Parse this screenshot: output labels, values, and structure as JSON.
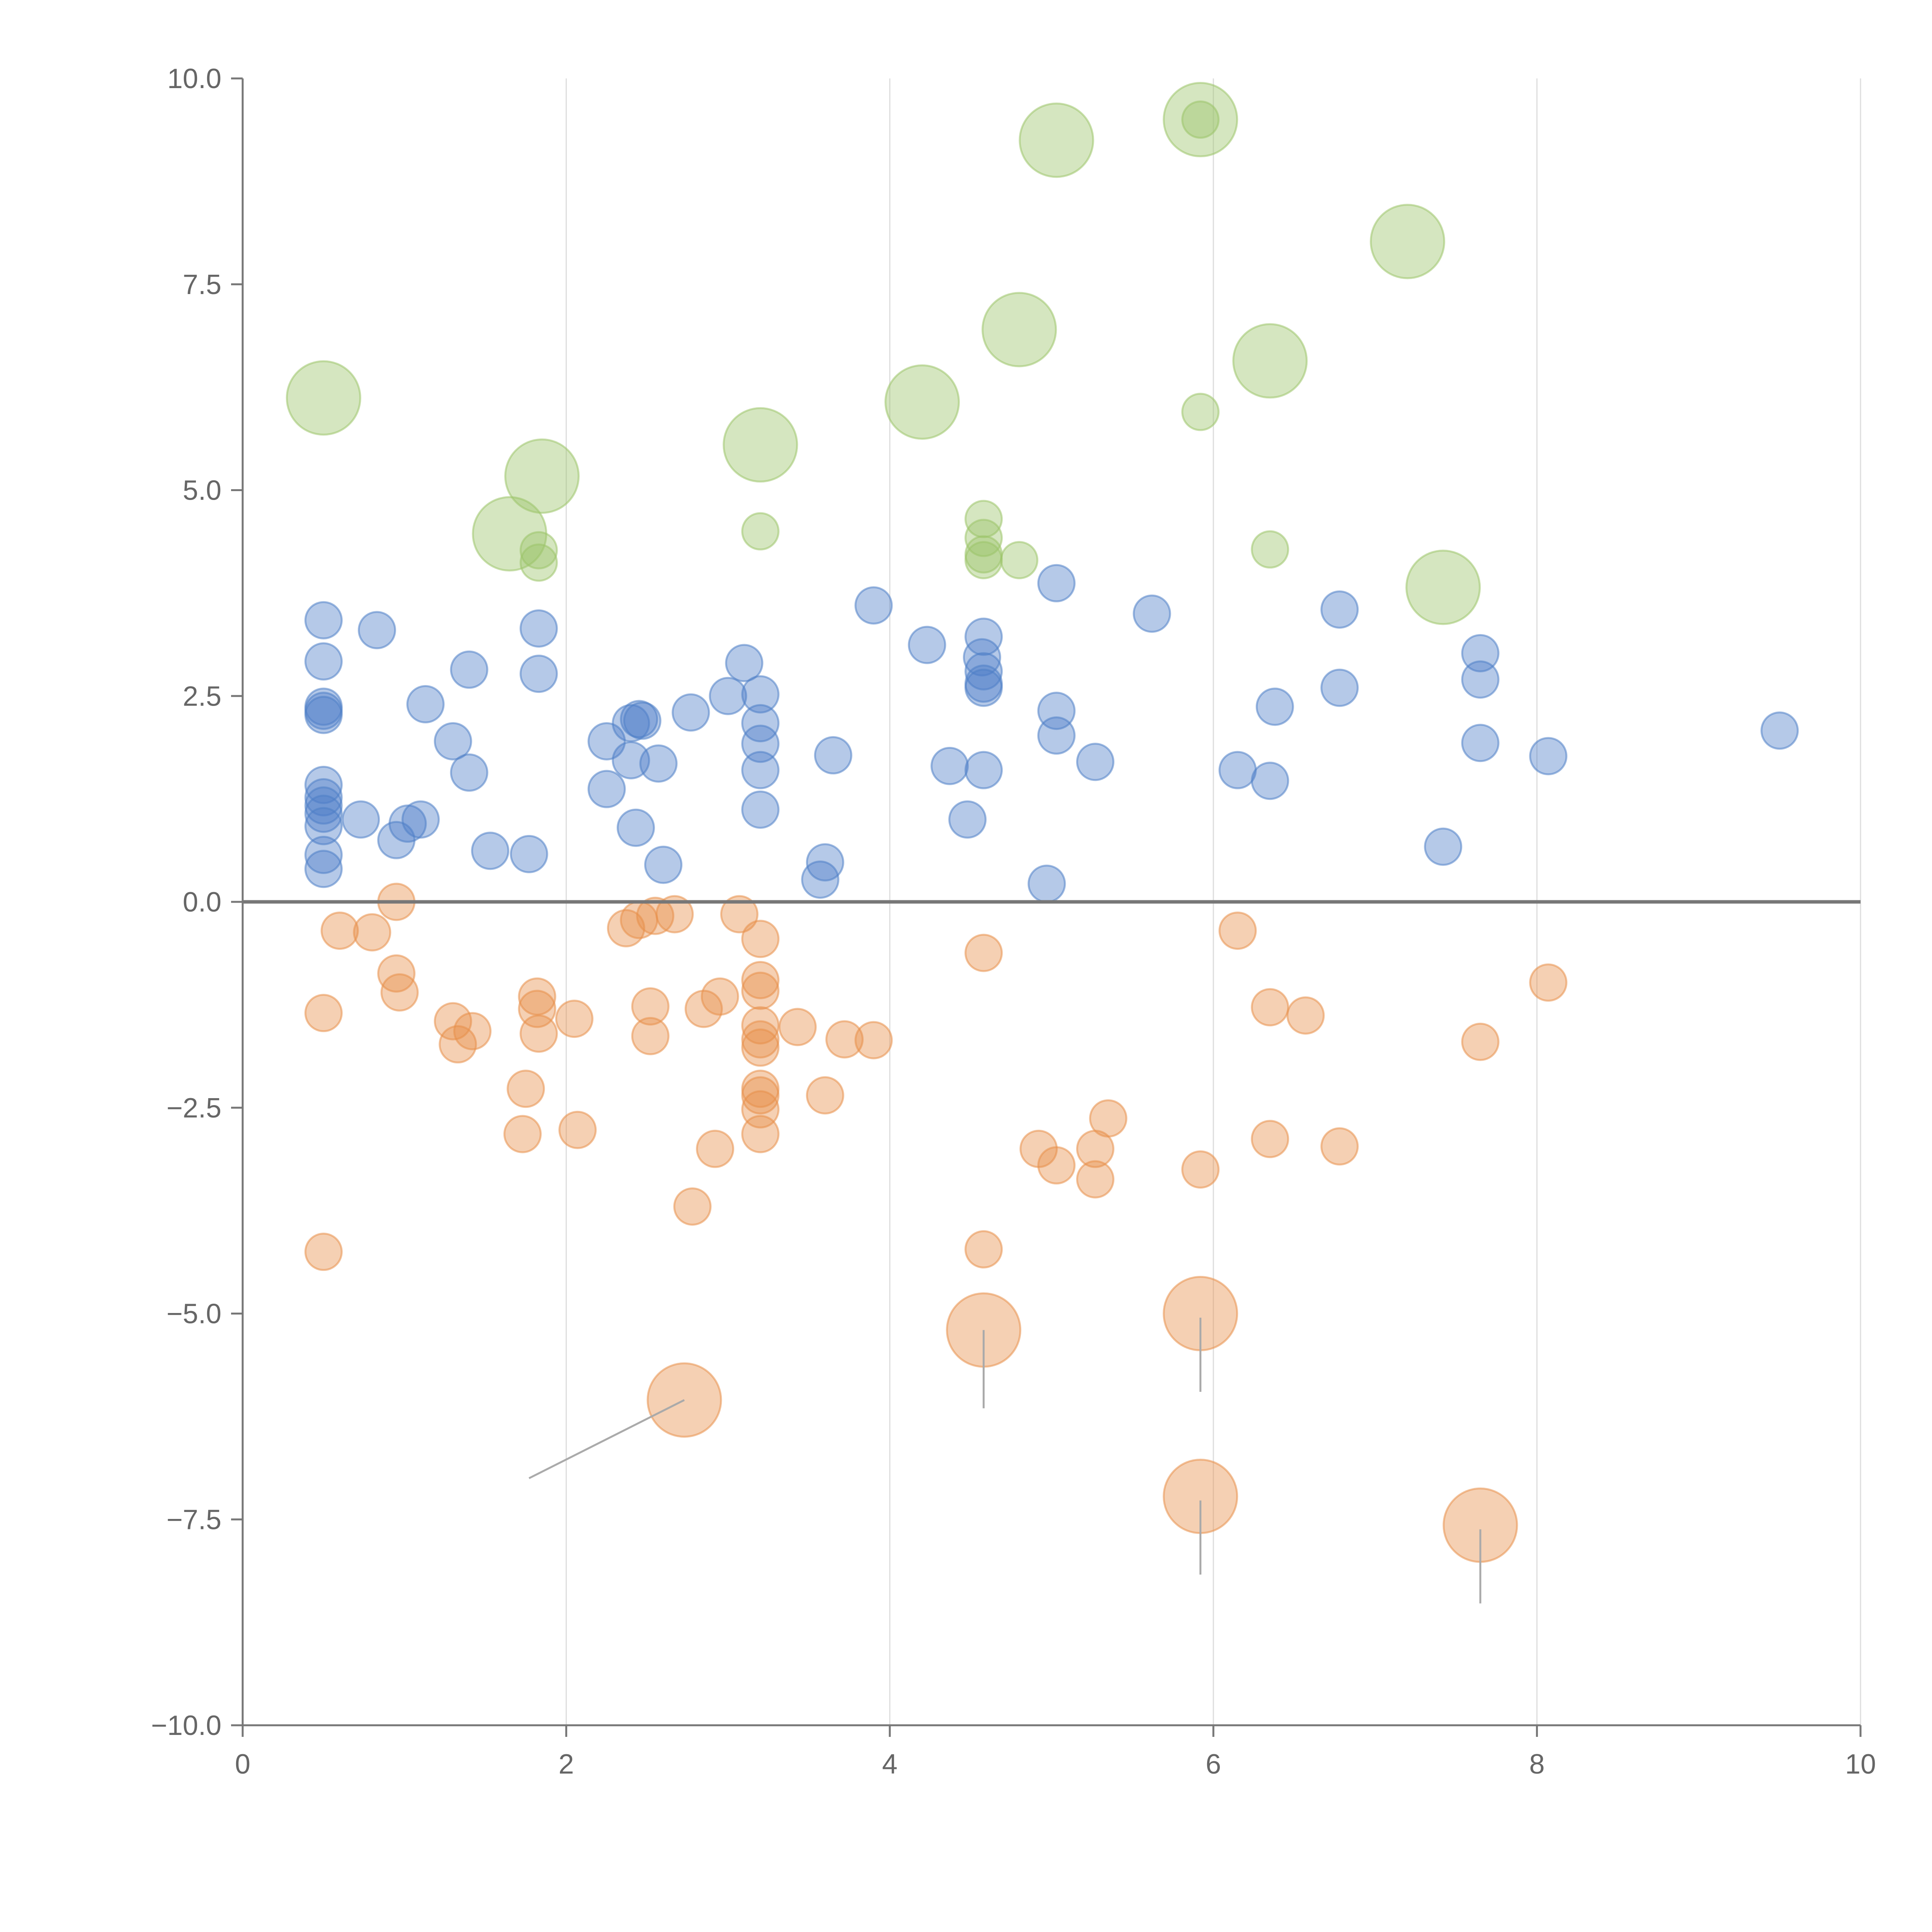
{
  "chart_data": {
    "type": "scatter",
    "title": "",
    "xlabel": "",
    "ylabel": "",
    "xlim": [
      0,
      10
    ],
    "ylim": [
      -10,
      10
    ],
    "x_ticks": [
      0,
      2,
      4,
      6,
      8,
      10
    ],
    "x_tick_labels": [
      "0",
      "2",
      "4",
      "6",
      "8",
      "10"
    ],
    "y_ticks": [
      10,
      7.5,
      5,
      2.5,
      0,
      -2.5,
      -5,
      -7.5,
      -10
    ],
    "y_tick_labels": [
      "10.0",
      "7.5",
      "5.0",
      "2.5",
      "0.0",
      "−2.5",
      "−5.0",
      "−7.5",
      "−10.0"
    ],
    "grid": "vertical",
    "legend": "none",
    "colors": {
      "blue": "#4f7fc7",
      "orange": "#e8904a",
      "green": "#9cc46a",
      "axis": "#777777",
      "grid": "#dddddd",
      "zero_line": "#777777",
      "leader": "#aaaaaa"
    },
    "series": [
      {
        "name": "blue",
        "size": 1,
        "points": [
          [
            0.5,
            3.42
          ],
          [
            0.5,
            2.92
          ],
          [
            0.5,
            2.37
          ],
          [
            0.5,
            2.32
          ],
          [
            0.5,
            2.27
          ],
          [
            0.5,
            1.42
          ],
          [
            0.5,
            1.27
          ],
          [
            0.5,
            1.17
          ],
          [
            0.5,
            1.07
          ],
          [
            0.5,
            0.92
          ],
          [
            0.5,
            0.57
          ],
          [
            0.5,
            0.4
          ],
          [
            0.73,
            1.0
          ],
          [
            0.83,
            3.3
          ],
          [
            0.95,
            0.75
          ],
          [
            1.02,
            0.95
          ],
          [
            1.1,
            1.0
          ],
          [
            1.13,
            2.4
          ],
          [
            1.3,
            1.95
          ],
          [
            1.4,
            1.57
          ],
          [
            1.4,
            2.82
          ],
          [
            1.53,
            0.62
          ],
          [
            1.77,
            0.58
          ],
          [
            1.83,
            3.32
          ],
          [
            1.83,
            2.77
          ],
          [
            2.25,
            1.95
          ],
          [
            2.25,
            1.37
          ],
          [
            2.4,
            2.17
          ],
          [
            2.4,
            1.72
          ],
          [
            2.43,
            0.9
          ],
          [
            2.45,
            2.22
          ],
          [
            2.47,
            2.2
          ],
          [
            2.57,
            1.68
          ],
          [
            2.6,
            0.45
          ],
          [
            2.77,
            2.3
          ],
          [
            3.0,
            2.5
          ],
          [
            3.1,
            2.9
          ],
          [
            3.2,
            2.52
          ],
          [
            3.2,
            2.17
          ],
          [
            3.2,
            1.92
          ],
          [
            3.2,
            1.6
          ],
          [
            3.2,
            1.12
          ],
          [
            3.57,
            0.27
          ],
          [
            3.6,
            0.48
          ],
          [
            3.65,
            1.78
          ],
          [
            3.9,
            3.6
          ],
          [
            4.23,
            3.12
          ],
          [
            4.37,
            1.65
          ],
          [
            4.48,
            1.0
          ],
          [
            4.57,
            2.97
          ],
          [
            4.58,
            3.22
          ],
          [
            4.58,
            2.8
          ],
          [
            4.58,
            2.65
          ],
          [
            4.58,
            2.6
          ],
          [
            4.58,
            1.6
          ],
          [
            4.97,
            0.22
          ],
          [
            5.03,
            3.87
          ],
          [
            5.03,
            2.32
          ],
          [
            5.03,
            2.02
          ],
          [
            5.27,
            1.7
          ],
          [
            5.62,
            3.5
          ],
          [
            6.15,
            1.6
          ],
          [
            6.35,
            1.47
          ],
          [
            6.38,
            2.37
          ],
          [
            6.78,
            3.55
          ],
          [
            6.78,
            2.6
          ],
          [
            7.42,
            0.67
          ],
          [
            7.65,
            3.02
          ],
          [
            7.65,
            2.7
          ],
          [
            7.65,
            1.93
          ],
          [
            8.07,
            1.77
          ],
          [
            9.5,
            2.08
          ]
        ]
      },
      {
        "name": "orange",
        "size": 1,
        "points": [
          [
            0.5,
            -1.35
          ],
          [
            0.5,
            -4.25
          ],
          [
            0.6,
            -0.35
          ],
          [
            0.8,
            -0.37
          ],
          [
            0.95,
            0.0
          ],
          [
            0.95,
            -0.87
          ],
          [
            0.97,
            -1.1
          ],
          [
            1.3,
            -1.45
          ],
          [
            1.33,
            -1.73
          ],
          [
            1.42,
            -1.57
          ],
          [
            1.73,
            -2.82
          ],
          [
            1.75,
            -2.27
          ],
          [
            1.82,
            -1.15
          ],
          [
            1.82,
            -1.3
          ],
          [
            1.83,
            -1.6
          ],
          [
            2.05,
            -1.42
          ],
          [
            2.07,
            -2.77
          ],
          [
            2.37,
            -0.32
          ],
          [
            2.45,
            -0.22
          ],
          [
            2.52,
            -1.27
          ],
          [
            2.52,
            -1.63
          ],
          [
            2.55,
            -0.17
          ],
          [
            2.67,
            -0.15
          ],
          [
            2.78,
            -3.7
          ],
          [
            2.85,
            -1.3
          ],
          [
            2.92,
            -3.0
          ],
          [
            2.95,
            -1.15
          ],
          [
            3.07,
            -0.15
          ],
          [
            3.2,
            -0.45
          ],
          [
            3.2,
            -0.95
          ],
          [
            3.2,
            -1.08
          ],
          [
            3.2,
            -1.5
          ],
          [
            3.2,
            -1.67
          ],
          [
            3.2,
            -1.77
          ],
          [
            3.2,
            -2.27
          ],
          [
            3.2,
            -2.35
          ],
          [
            3.2,
            -2.52
          ],
          [
            3.2,
            -2.82
          ],
          [
            3.43,
            -1.52
          ],
          [
            3.6,
            -2.35
          ],
          [
            3.72,
            -1.67
          ],
          [
            3.9,
            -1.68
          ],
          [
            4.58,
            -0.62
          ],
          [
            4.58,
            -4.22
          ],
          [
            4.92,
            -3.0
          ],
          [
            5.03,
            -3.2
          ],
          [
            5.27,
            -3.0
          ],
          [
            5.27,
            -3.37
          ],
          [
            5.35,
            -2.63
          ],
          [
            5.92,
            -3.25
          ],
          [
            6.15,
            -0.35
          ],
          [
            6.35,
            -1.28
          ],
          [
            6.35,
            -2.88
          ],
          [
            6.57,
            -1.38
          ],
          [
            6.78,
            -2.97
          ],
          [
            7.65,
            -1.7
          ],
          [
            8.07,
            -0.98
          ]
        ]
      },
      {
        "name": "orange-large",
        "size": 2,
        "points": [
          [
            2.73,
            -6.05
          ],
          [
            4.58,
            -5.2
          ],
          [
            5.92,
            -5.0
          ],
          [
            5.92,
            -7.22
          ],
          [
            7.65,
            -7.57
          ]
        ]
      },
      {
        "name": "green",
        "size": 1,
        "points": [
          [
            1.83,
            4.27
          ],
          [
            1.83,
            4.12
          ],
          [
            3.2,
            4.5
          ],
          [
            4.58,
            4.65
          ],
          [
            4.58,
            4.42
          ],
          [
            4.58,
            4.22
          ],
          [
            4.58,
            4.15
          ],
          [
            4.8,
            4.15
          ],
          [
            5.92,
            5.95
          ],
          [
            6.35,
            4.28
          ],
          [
            5.92,
            9.5
          ]
        ]
      },
      {
        "name": "green-large",
        "size": 2,
        "points": [
          [
            0.5,
            6.12
          ],
          [
            1.65,
            4.47
          ],
          [
            1.85,
            5.17
          ],
          [
            3.2,
            5.55
          ],
          [
            4.2,
            6.07
          ],
          [
            4.8,
            6.95
          ],
          [
            5.03,
            9.25
          ],
          [
            5.92,
            9.5
          ],
          [
            6.35,
            6.57
          ],
          [
            7.2,
            8.02
          ],
          [
            7.42,
            3.82
          ]
        ]
      }
    ],
    "leader_lines": [
      {
        "from": [
          1.77,
          -7.0
        ],
        "to": [
          2.73,
          -6.05
        ]
      },
      {
        "from": [
          4.58,
          -5.2
        ],
        "to": [
          4.58,
          -6.15
        ]
      },
      {
        "from": [
          5.92,
          -5.05
        ],
        "to": [
          5.92,
          -5.95
        ]
      },
      {
        "from": [
          5.92,
          -7.27
        ],
        "to": [
          5.92,
          -8.17
        ]
      },
      {
        "from": [
          7.65,
          -7.62
        ],
        "to": [
          7.65,
          -8.52
        ]
      }
    ]
  }
}
